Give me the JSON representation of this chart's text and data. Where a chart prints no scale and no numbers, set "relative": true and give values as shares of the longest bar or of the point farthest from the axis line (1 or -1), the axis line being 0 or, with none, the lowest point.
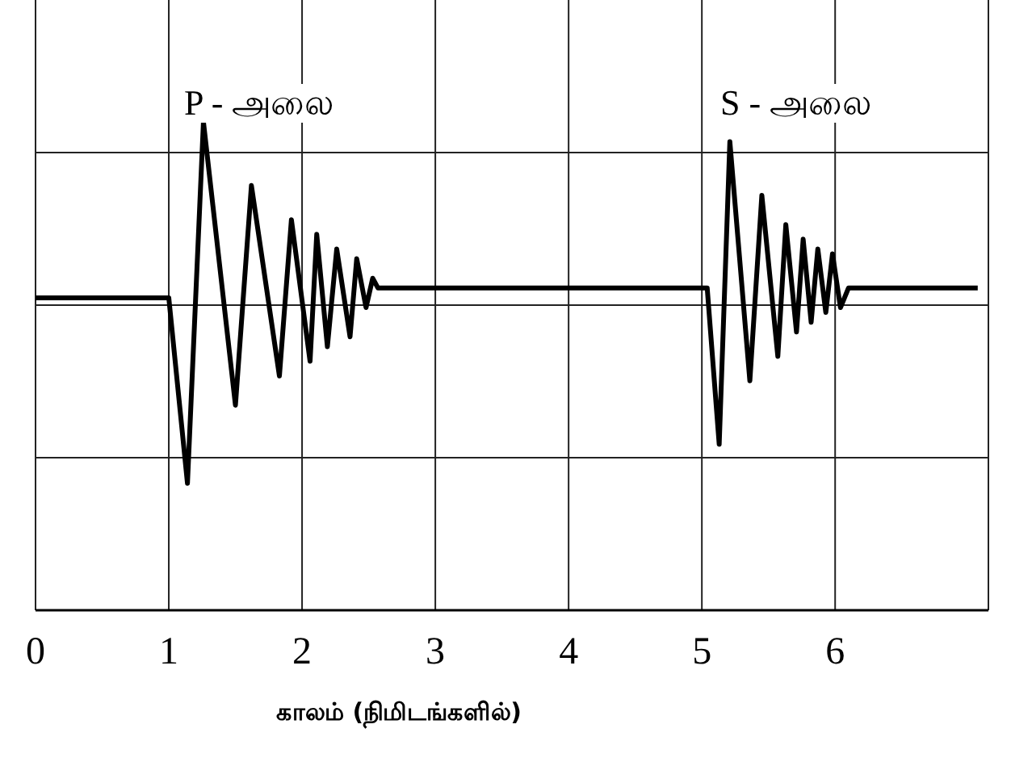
{
  "chart_data": {
    "type": "line",
    "relative": true,
    "xlabel": "காலம் (நிமிடங்களில்)",
    "xlim": [
      0,
      7.15
    ],
    "xticks": [
      0,
      1,
      2,
      3,
      4,
      5,
      6
    ],
    "grid": true,
    "marker": "none",
    "line_style": "solid",
    "x": [
      0,
      1.0,
      1.14,
      1.26,
      1.5,
      1.62,
      1.83,
      1.92,
      2.06,
      2.11,
      2.19,
      2.26,
      2.36,
      2.41,
      2.48,
      2.53,
      2.57,
      5.0,
      5.04,
      5.13,
      5.21,
      5.36,
      5.45,
      5.57,
      5.63,
      5.71,
      5.76,
      5.82,
      5.87,
      5.93,
      5.98,
      6.04,
      6.1,
      7.07
    ],
    "series": [
      {
        "color": "#000000",
        "values": [
          0.64,
          0.64,
          0.26,
          1.0,
          0.42,
          0.87,
          0.48,
          0.8,
          0.51,
          0.77,
          0.54,
          0.74,
          0.56,
          0.72,
          0.62,
          0.68,
          0.66,
          0.66,
          0.66,
          0.34,
          0.96,
          0.47,
          0.85,
          0.52,
          0.79,
          0.57,
          0.76,
          0.59,
          0.74,
          0.61,
          0.73,
          0.62,
          0.66,
          0.66
        ]
      }
    ],
    "annotations": [
      "P - அலை",
      "S - அலை"
    ]
  }
}
